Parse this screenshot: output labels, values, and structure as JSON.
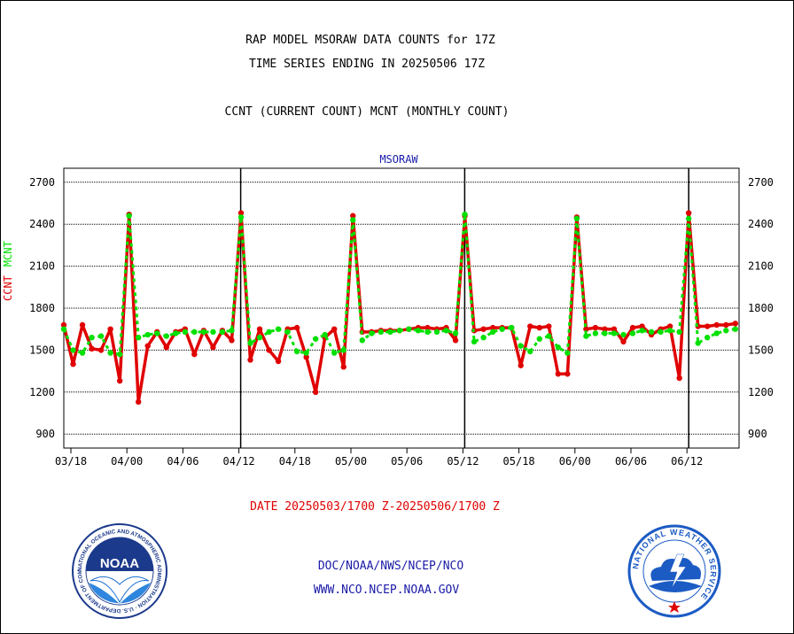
{
  "header": {
    "line1": "RAP MODEL MSORAW DATA COUNTS for 17Z",
    "line2": "TIME SERIES ENDING IN 20250506 17Z",
    "line3": "CCNT (CURRENT COUNT) MCNT (MONTHLY COUNT)"
  },
  "footer": {
    "date_range": "DATE 20250503/1700 Z-20250506/1700 Z",
    "org": "DOC/NOAA/NWS/NCEP/NCO",
    "url": "WWW.NCO.NCEP.NOAA.GOV"
  },
  "logos": {
    "noaa_text": "NOAA",
    "noaa_ring": "NATIONAL OCEANIC AND ATMOSPHERIC ADMINISTRATION · U.S. DEPARTMENT OF COMMERCE ·",
    "nws_ring": "NATIONAL WEATHER SERVICE"
  },
  "colors": {
    "ccnt": "#e00000",
    "mcnt": "#00e000",
    "title_blue": "#1a1aa8",
    "nws_blue": "#1c5bc4"
  },
  "chart_data": {
    "type": "line",
    "title": "MSORAW",
    "ylabel_series": [
      "CCNT",
      "MCNT"
    ],
    "ylim": [
      800,
      2800
    ],
    "yticks": [
      900,
      1200,
      1500,
      1800,
      2100,
      2400,
      2700
    ],
    "x_tick_labels": [
      "03/18",
      "04/00",
      "04/06",
      "04/12",
      "04/18",
      "05/00",
      "05/06",
      "05/12",
      "05/18",
      "06/00",
      "06/06",
      "06/12"
    ],
    "x_day_boundaries_at_tick": [
      "04/12",
      "05/12",
      "06/12"
    ],
    "grid": true,
    "series": [
      {
        "name": "CCNT",
        "values": [
          1680,
          1400,
          1680,
          1510,
          1500,
          1650,
          1280,
          2470,
          1130,
          1530,
          1630,
          1520,
          1630,
          1650,
          1470,
          1640,
          1520,
          1640,
          1570,
          2480,
          1430,
          1650,
          1500,
          1420,
          1650,
          1660,
          1450,
          1200,
          1590,
          1650,
          1380,
          2460,
          1630,
          1630,
          1640,
          1640,
          1640,
          1650,
          1660,
          1660,
          1650,
          1660,
          1570,
          2460,
          1640,
          1650,
          1660,
          1660,
          1660,
          1390,
          1670,
          1660,
          1670,
          1330,
          1330,
          2450,
          1650,
          1660,
          1650,
          1650,
          1560,
          1660,
          1670,
          1610,
          1650,
          1670,
          1300,
          2480,
          1670,
          1670,
          1680,
          1680,
          1690
        ]
      },
      {
        "name": "MCNT",
        "values": [
          1650,
          1500,
          1480,
          1590,
          1600,
          1480,
          1470,
          2460,
          1590,
          1610,
          1620,
          1600,
          1620,
          1630,
          1630,
          1630,
          1630,
          1630,
          1640,
          2450,
          1550,
          1590,
          1630,
          1650,
          1630,
          1490,
          1480,
          1580,
          1610,
          1480,
          1500,
          2430,
          1570,
          1620,
          1630,
          1630,
          1640,
          1650,
          1640,
          1630,
          1630,
          1640,
          1620,
          2470,
          1560,
          1590,
          1630,
          1650,
          1660,
          1530,
          1490,
          1580,
          1600,
          1520,
          1480,
          2440,
          1600,
          1620,
          1620,
          1620,
          1610,
          1620,
          1640,
          1630,
          1630,
          1640,
          1630,
          2440,
          1550,
          1590,
          1620,
          1640,
          1650
        ]
      }
    ]
  }
}
